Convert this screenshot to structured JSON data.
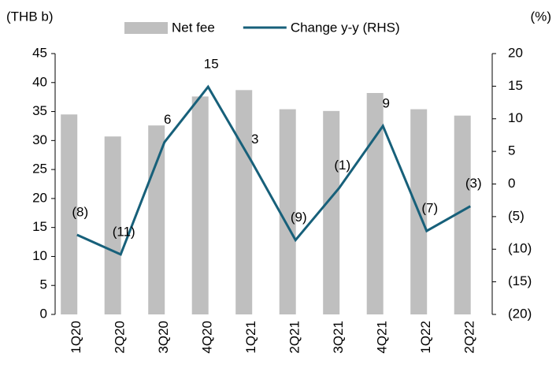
{
  "chart_data": {
    "type": "bar-line",
    "y_label": "(THB b)",
    "y2_label": "(%)",
    "categories": [
      "1Q20",
      "2Q20",
      "3Q20",
      "4Q20",
      "1Q21",
      "2Q21",
      "3Q21",
      "4Q21",
      "1Q22",
      "2Q22"
    ],
    "series": [
      {
        "name": "Net fee",
        "type": "bar",
        "color": "#bfbfbf",
        "values": [
          34.5,
          30.7,
          32.6,
          37.6,
          38.7,
          35.4,
          35.1,
          38.2,
          35.4,
          34.3
        ]
      },
      {
        "name": "Change y-y (RHS)",
        "type": "line",
        "axis": "y2",
        "color": "#17607a",
        "values": [
          -7.8,
          -10.8,
          6.4,
          14.9,
          3.4,
          -8.6,
          -0.6,
          8.9,
          -7.2,
          -3.4
        ],
        "value_labels": [
          "(8)",
          "(11)",
          "6",
          "15",
          "3",
          "(9)",
          "(1)",
          "9",
          "(7)",
          "(3)"
        ]
      }
    ],
    "ylim": [
      0,
      45
    ],
    "yticks": [
      0,
      5,
      10,
      15,
      20,
      25,
      30,
      35,
      40,
      45
    ],
    "y2lim": [
      -20,
      20
    ],
    "y2ticks": [
      {
        "value": -20,
        "label": "(20)"
      },
      {
        "value": -15,
        "label": "(15)"
      },
      {
        "value": -10,
        "label": "(10)"
      },
      {
        "value": -5,
        "label": "(5)"
      },
      0,
      5,
      10,
      15,
      20
    ],
    "legend": "top"
  }
}
